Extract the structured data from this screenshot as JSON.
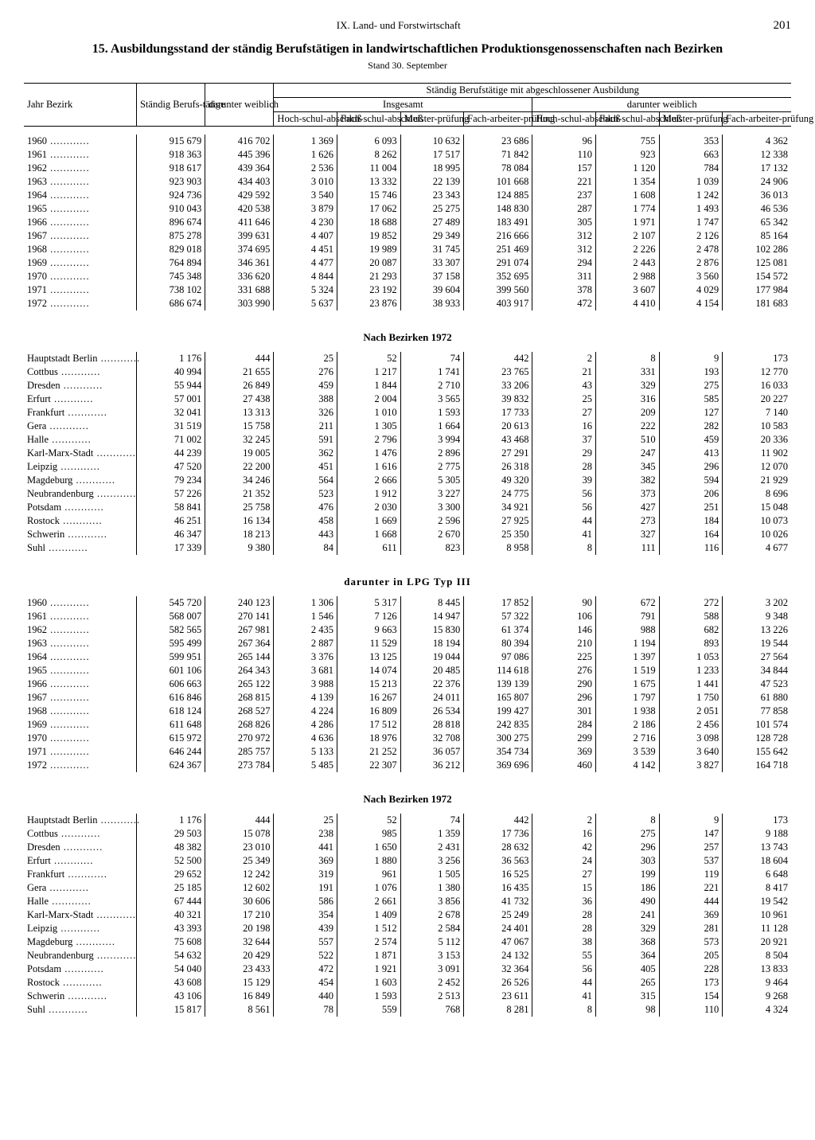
{
  "chapter": "IX. Land- und Forstwirtschaft",
  "page": "201",
  "title": "15. Ausbildungsstand der ständig Berufstätigen in landwirtschaftlichen Produktionsgenossenschaften nach Bezirken",
  "stand": "Stand 30. September",
  "headers": {
    "col_label": "Jahr\nBezirk",
    "staendig": "Ständig Berufs-tätige",
    "darunter_w": "darunter weiblich",
    "group_top": "Ständig Berufstätige mit abgeschlossener Ausbildung",
    "insgesamt": "Insgesamt",
    "dar_weiblich": "darunter weiblich",
    "hoch": "Hoch-schul-abschluß",
    "fach": "Fach-schul-abschluß",
    "meister": "Meister-prüfung",
    "facharbeiter": "Fach-arbeiter-prüfung"
  },
  "section_titles": {
    "bez1972_a": "Nach Bezirken 1972",
    "typ3": "darunter in LPG Typ III",
    "bez1972_b": "Nach Bezirken 1972"
  },
  "years_a": [
    [
      "1960",
      "915 679",
      "416 702",
      "1 369",
      "6 093",
      "10 632",
      "23 686",
      "96",
      "755",
      "353",
      "4 362"
    ],
    [
      "1961",
      "918 363",
      "445 396",
      "1 626",
      "8 262",
      "17 517",
      "71 842",
      "110",
      "923",
      "663",
      "12 338"
    ],
    [
      "1962",
      "918 617",
      "439 364",
      "2 536",
      "11 004",
      "18 995",
      "78 084",
      "157",
      "1 120",
      "784",
      "17 132"
    ],
    [
      "1963",
      "923 903",
      "434 403",
      "3 010",
      "13 332",
      "22 139",
      "101 668",
      "221",
      "1 354",
      "1 039",
      "24 906"
    ],
    [
      "1964",
      "924 736",
      "429 592",
      "3 540",
      "15 746",
      "23 343",
      "124 885",
      "237",
      "1 608",
      "1 242",
      "36 013"
    ],
    [
      "1965",
      "910 043",
      "420 538",
      "3 879",
      "17 062",
      "25 275",
      "148 830",
      "287",
      "1 774",
      "1 493",
      "46 536"
    ],
    [
      "1966",
      "896 674",
      "411 646",
      "4 230",
      "18 688",
      "27 489",
      "183 491",
      "305",
      "1 971",
      "1 747",
      "65 342"
    ],
    [
      "1967",
      "875 278",
      "399 631",
      "4 407",
      "19 852",
      "29 349",
      "216 666",
      "312",
      "2 107",
      "2 126",
      "85 164"
    ],
    [
      "1968",
      "829 018",
      "374 695",
      "4 451",
      "19 989",
      "31 745",
      "251 469",
      "312",
      "2 226",
      "2 478",
      "102 286"
    ],
    [
      "1969",
      "764 894",
      "346 361",
      "4 477",
      "20 087",
      "33 307",
      "291 074",
      "294",
      "2 443",
      "2 876",
      "125 081"
    ],
    [
      "1970",
      "745 348",
      "336 620",
      "4 844",
      "21 293",
      "37 158",
      "352 695",
      "311",
      "2 988",
      "3 560",
      "154 572"
    ],
    [
      "1971",
      "738 102",
      "331 688",
      "5 324",
      "23 192",
      "39 604",
      "399 560",
      "378",
      "3 607",
      "4 029",
      "177 984"
    ],
    [
      "1972",
      "686 674",
      "303 990",
      "5 637",
      "23 876",
      "38 933",
      "403 917",
      "472",
      "4 410",
      "4 154",
      "181 683"
    ]
  ],
  "bezirke_a": [
    [
      "Hauptstadt Berlin",
      "1 176",
      "444",
      "25",
      "52",
      "74",
      "442",
      "2",
      "8",
      "9",
      "173"
    ],
    [
      "Cottbus",
      "40 994",
      "21 655",
      "276",
      "1 217",
      "1 741",
      "23 765",
      "21",
      "331",
      "193",
      "12 770"
    ],
    [
      "Dresden",
      "55 944",
      "26 849",
      "459",
      "1 844",
      "2 710",
      "33 206",
      "43",
      "329",
      "275",
      "16 033"
    ],
    [
      "Erfurt",
      "57 001",
      "27 438",
      "388",
      "2 004",
      "3 565",
      "39 832",
      "25",
      "316",
      "585",
      "20 227"
    ],
    [
      "Frankfurt",
      "32 041",
      "13 313",
      "326",
      "1 010",
      "1 593",
      "17 733",
      "27",
      "209",
      "127",
      "7 140"
    ],
    [
      "Gera",
      "31 519",
      "15 758",
      "211",
      "1 305",
      "1 664",
      "20 613",
      "16",
      "222",
      "282",
      "10 583"
    ],
    [
      "Halle",
      "71 002",
      "32 245",
      "591",
      "2 796",
      "3 994",
      "43 468",
      "37",
      "510",
      "459",
      "20 336"
    ],
    [
      "Karl-Marx-Stadt",
      "44 239",
      "19 005",
      "362",
      "1 476",
      "2 896",
      "27 291",
      "29",
      "247",
      "413",
      "11 902"
    ],
    [
      "Leipzig",
      "47 520",
      "22 200",
      "451",
      "1 616",
      "2 775",
      "26 318",
      "28",
      "345",
      "296",
      "12 070"
    ],
    [
      "Magdeburg",
      "79 234",
      "34 246",
      "564",
      "2 666",
      "5 305",
      "49 320",
      "39",
      "382",
      "594",
      "21 929"
    ],
    [
      "Neubrandenburg",
      "57 226",
      "21 352",
      "523",
      "1 912",
      "3 227",
      "24 775",
      "56",
      "373",
      "206",
      "8 696"
    ],
    [
      "Potsdam",
      "58 841",
      "25 758",
      "476",
      "2 030",
      "3 300",
      "34 921",
      "56",
      "427",
      "251",
      "15 048"
    ],
    [
      "Rostock",
      "46 251",
      "16 134",
      "458",
      "1 669",
      "2 596",
      "27 925",
      "44",
      "273",
      "184",
      "10 073"
    ],
    [
      "Schwerin",
      "46 347",
      "18 213",
      "443",
      "1 668",
      "2 670",
      "25 350",
      "41",
      "327",
      "164",
      "10 026"
    ],
    [
      "Suhl",
      "17 339",
      "9 380",
      "84",
      "611",
      "823",
      "8 958",
      "8",
      "111",
      "116",
      "4 677"
    ]
  ],
  "years_b": [
    [
      "1960",
      "545 720",
      "240 123",
      "1 306",
      "5 317",
      "8 445",
      "17 852",
      "90",
      "672",
      "272",
      "3 202"
    ],
    [
      "1961",
      "568 007",
      "270 141",
      "1 546",
      "7 126",
      "14 947",
      "57 322",
      "106",
      "791",
      "588",
      "9 348"
    ],
    [
      "1962",
      "582 565",
      "267 981",
      "2 435",
      "9 663",
      "15 830",
      "61 374",
      "146",
      "988",
      "682",
      "13 226"
    ],
    [
      "1963",
      "595 499",
      "267 364",
      "2 887",
      "11 529",
      "18 194",
      "80 394",
      "210",
      "1 194",
      "893",
      "19 544"
    ],
    [
      "1964",
      "599 951",
      "265 144",
      "3 376",
      "13 125",
      "19 044",
      "97 086",
      "225",
      "1 397",
      "1 053",
      "27 564"
    ],
    [
      "1965",
      "601 106",
      "264 343",
      "3 681",
      "14 074",
      "20 485",
      "114 618",
      "276",
      "1 519",
      "1 233",
      "34 844"
    ],
    [
      "1966",
      "606 663",
      "265 122",
      "3 988",
      "15 213",
      "22 376",
      "139 139",
      "290",
      "1 675",
      "1 441",
      "47 523"
    ],
    [
      "1967",
      "616 846",
      "268 815",
      "4 139",
      "16 267",
      "24 011",
      "165 807",
      "296",
      "1 797",
      "1 750",
      "61 880"
    ],
    [
      "1968",
      "618 124",
      "268 527",
      "4 224",
      "16 809",
      "26 534",
      "199 427",
      "301",
      "1 938",
      "2 051",
      "77 858"
    ],
    [
      "1969",
      "611 648",
      "268 826",
      "4 286",
      "17 512",
      "28 818",
      "242 835",
      "284",
      "2 186",
      "2 456",
      "101 574"
    ],
    [
      "1970",
      "615 972",
      "270 972",
      "4 636",
      "18 976",
      "32 708",
      "300 275",
      "299",
      "2 716",
      "3 098",
      "128 728"
    ],
    [
      "1971",
      "646 244",
      "285 757",
      "5 133",
      "21 252",
      "36 057",
      "354 734",
      "369",
      "3 539",
      "3 640",
      "155 642"
    ],
    [
      "1972",
      "624 367",
      "273 784",
      "5 485",
      "22 307",
      "36 212",
      "369 696",
      "460",
      "4 142",
      "3 827",
      "164 718"
    ]
  ],
  "bezirke_b": [
    [
      "Hauptstadt Berlin",
      "1 176",
      "444",
      "25",
      "52",
      "74",
      "442",
      "2",
      "8",
      "9",
      "173"
    ],
    [
      "Cottbus",
      "29 503",
      "15 078",
      "238",
      "985",
      "1 359",
      "17 736",
      "16",
      "275",
      "147",
      "9 188"
    ],
    [
      "Dresden",
      "48 382",
      "23 010",
      "441",
      "1 650",
      "2 431",
      "28 632",
      "42",
      "296",
      "257",
      "13 743"
    ],
    [
      "Erfurt",
      "52 500",
      "25 349",
      "369",
      "1 880",
      "3 256",
      "36 563",
      "24",
      "303",
      "537",
      "18 604"
    ],
    [
      "Frankfurt",
      "29 652",
      "12 242",
      "319",
      "961",
      "1 505",
      "16 525",
      "27",
      "199",
      "119",
      "6 648"
    ],
    [
      "Gera",
      "25 185",
      "12 602",
      "191",
      "1 076",
      "1 380",
      "16 435",
      "15",
      "186",
      "221",
      "8 417"
    ],
    [
      "Halle",
      "67 444",
      "30 606",
      "586",
      "2 661",
      "3 856",
      "41 732",
      "36",
      "490",
      "444",
      "19 542"
    ],
    [
      "Karl-Marx-Stadt",
      "40 321",
      "17 210",
      "354",
      "1 409",
      "2 678",
      "25 249",
      "28",
      "241",
      "369",
      "10 961"
    ],
    [
      "Leipzig",
      "43 393",
      "20 198",
      "439",
      "1 512",
      "2 584",
      "24 401",
      "28",
      "329",
      "281",
      "11 128"
    ],
    [
      "Magdeburg",
      "75 608",
      "32 644",
      "557",
      "2 574",
      "5 112",
      "47 067",
      "38",
      "368",
      "573",
      "20 921"
    ],
    [
      "Neubrandenburg",
      "54 632",
      "20 429",
      "522",
      "1 871",
      "3 153",
      "24 132",
      "55",
      "364",
      "205",
      "8 504"
    ],
    [
      "Potsdam",
      "54 040",
      "23 433",
      "472",
      "1 921",
      "3 091",
      "32 364",
      "56",
      "405",
      "228",
      "13 833"
    ],
    [
      "Rostock",
      "43 608",
      "15 129",
      "454",
      "1 603",
      "2 452",
      "26 526",
      "44",
      "265",
      "173",
      "9 464"
    ],
    [
      "Schwerin",
      "43 106",
      "16 849",
      "440",
      "1 593",
      "2 513",
      "23 611",
      "41",
      "315",
      "154",
      "9 268"
    ],
    [
      "Suhl",
      "15 817",
      "8 561",
      "78",
      "559",
      "768",
      "8 281",
      "8",
      "98",
      "110",
      "4 324"
    ]
  ]
}
